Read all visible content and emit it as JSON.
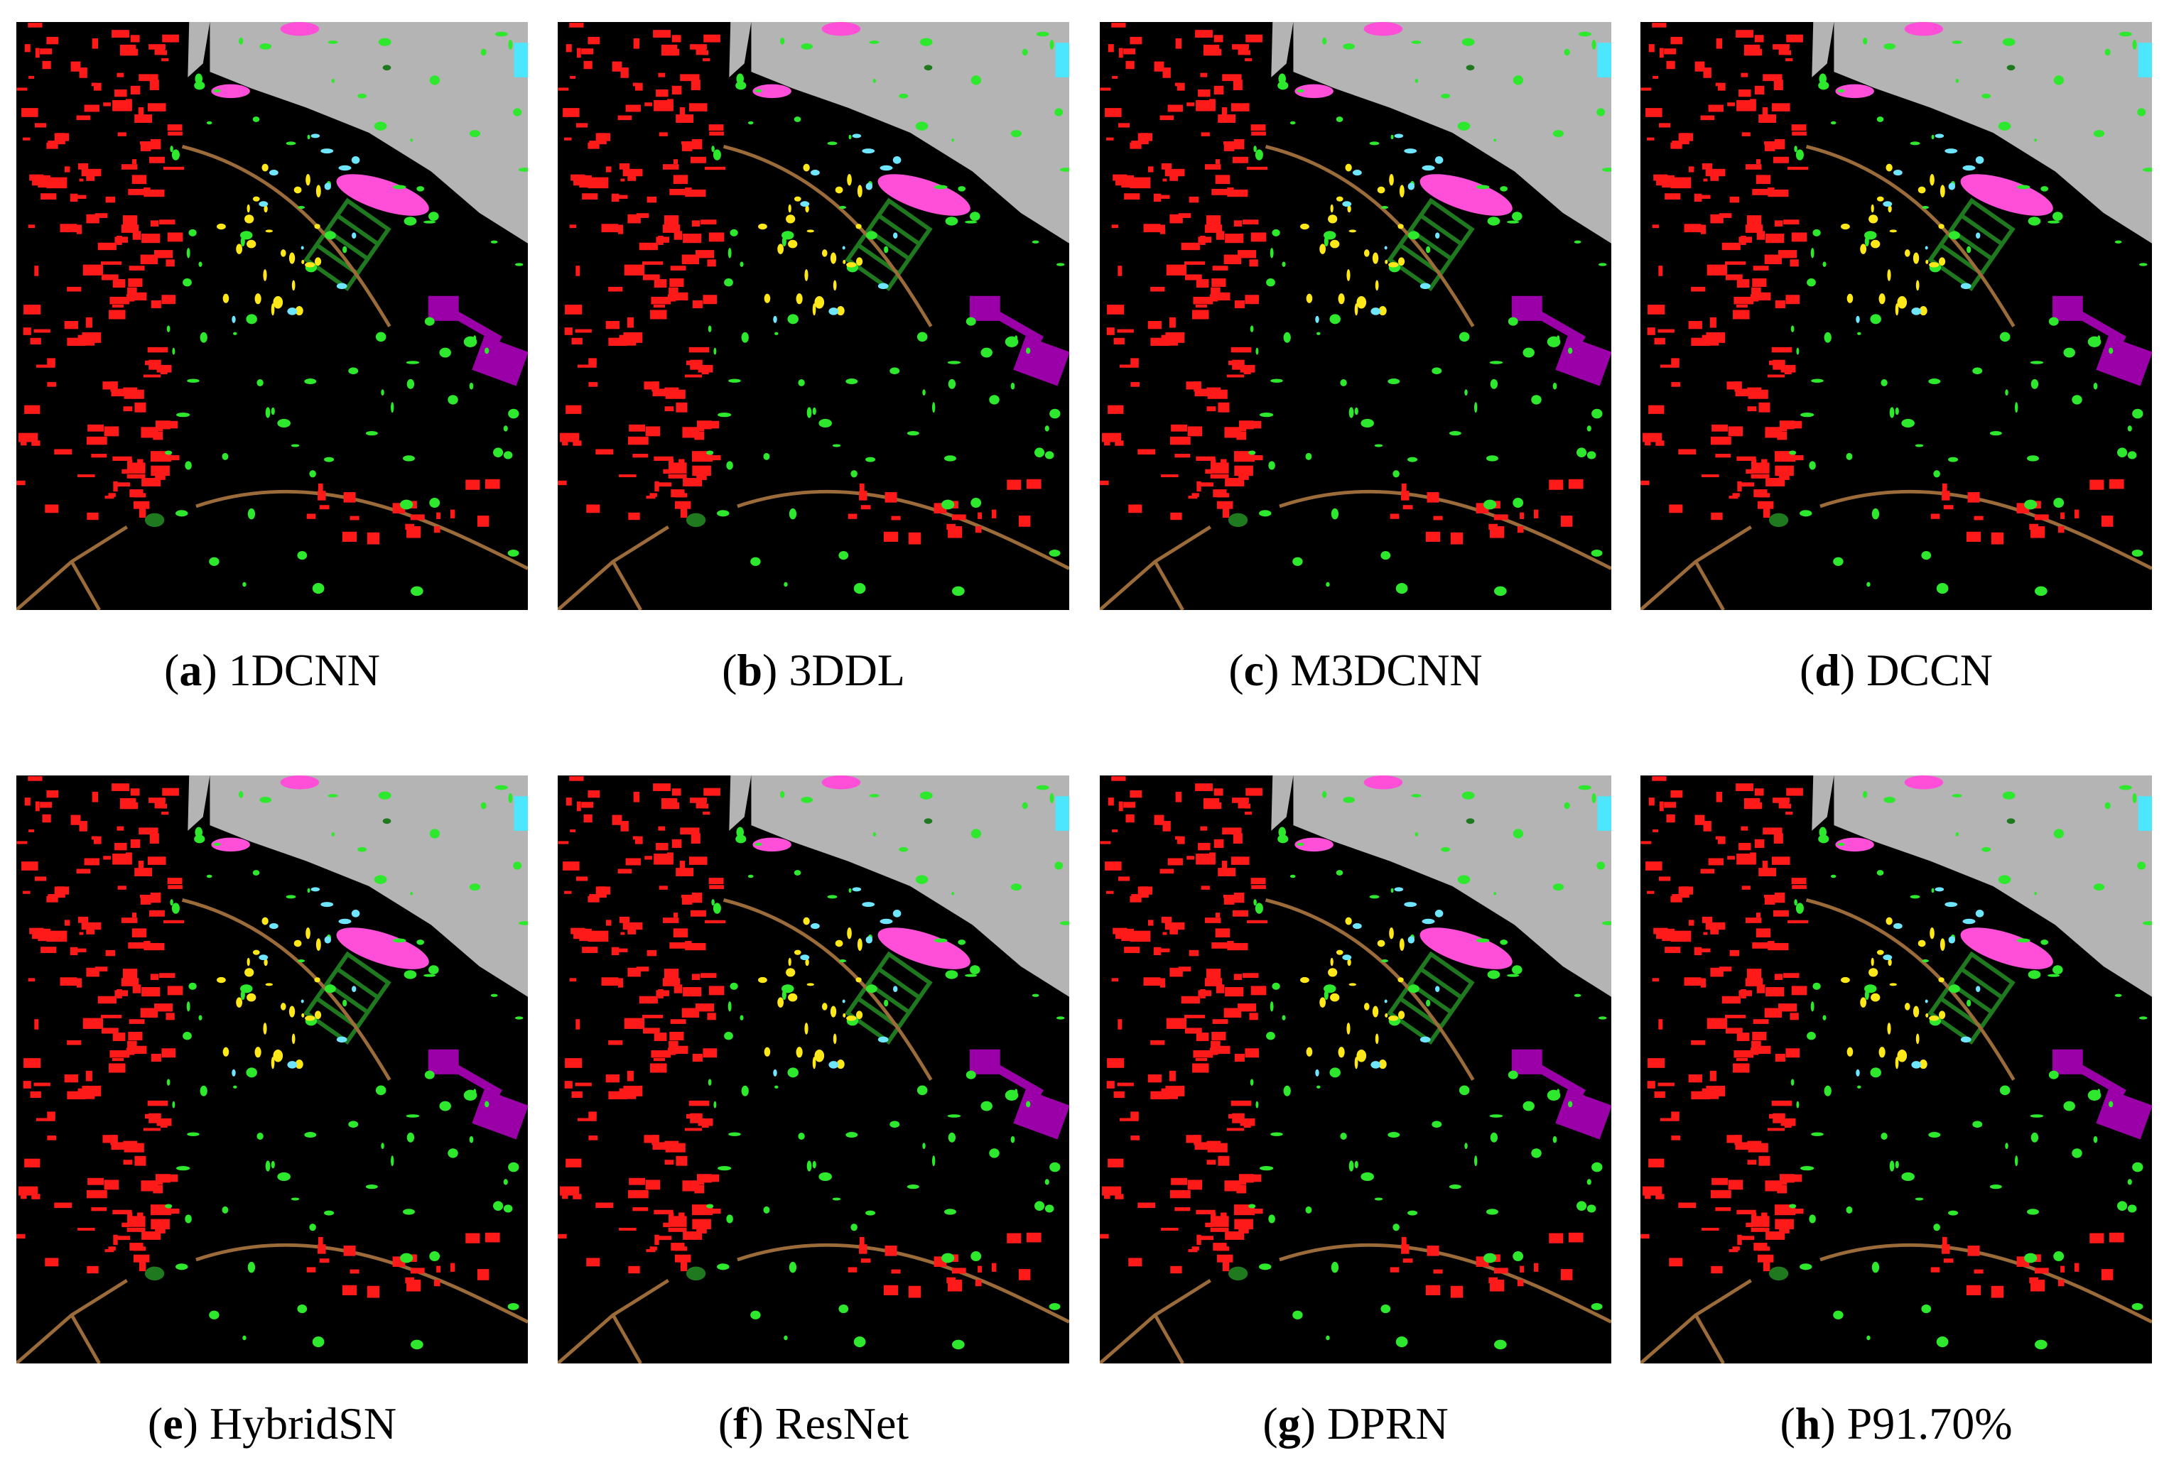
{
  "panels": [
    {
      "open": "(",
      "letter": "a",
      "close": ")",
      "name": "1DCNN"
    },
    {
      "open": "(",
      "letter": "b",
      "close": ")",
      "name": "3DDL"
    },
    {
      "open": "(",
      "letter": "c",
      "close": ")",
      "name": "M3DCNN"
    },
    {
      "open": "(",
      "letter": "d",
      "close": ")",
      "name": "DCCN"
    },
    {
      "open": "(",
      "letter": "e",
      "close": ")",
      "name": "HybridSN"
    },
    {
      "open": "(",
      "letter": "f",
      "close": ")",
      "name": "ResNet"
    },
    {
      "open": "(",
      "letter": "g",
      "close": ")",
      "name": "DPRN"
    },
    {
      "open": "(",
      "letter": "h",
      "close": ")",
      "name": "P91.70%"
    }
  ]
}
